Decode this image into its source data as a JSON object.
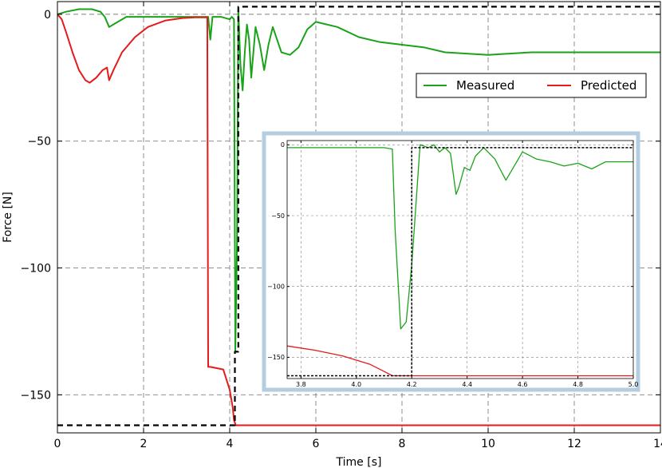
{
  "chart_data": [
    {
      "type": "line",
      "xlabel": "Time [s]",
      "ylabel": "Force [N]",
      "xlim": [
        0,
        14
      ],
      "ylim": [
        -165,
        5
      ],
      "xticks": [
        "0",
        "2",
        "4",
        "6",
        "8",
        "10",
        "12",
        "14"
      ],
      "yticks": [
        "0",
        "−50",
        "−100",
        "−150"
      ],
      "grid": true,
      "legend_position": "top-right",
      "legend": [
        "Measured",
        "Predicted"
      ],
      "colors": {
        "measured": "#1aa31a",
        "predicted": "#e51a1a",
        "reference": "#000000",
        "inset_frame": "#b5cde0"
      },
      "series": [
        {
          "name": "Measured",
          "color": "#1aa31a",
          "style": "solid",
          "x": [
            0,
            0.2,
            0.5,
            0.8,
            1.0,
            1.1,
            1.2,
            1.3,
            1.6,
            2.0,
            2.5,
            3.0,
            3.4,
            3.5,
            3.55,
            3.6,
            3.8,
            4.0,
            4.05,
            4.1,
            4.13,
            4.17,
            4.2,
            4.25,
            4.3,
            4.35,
            4.4,
            4.45,
            4.5,
            4.6,
            4.7,
            4.8,
            4.9,
            5.0,
            5.2,
            5.4,
            5.6,
            5.8,
            6.0,
            6.5,
            7.0,
            7.5,
            8.0,
            8.5,
            9.0,
            10.0,
            11.0,
            12.0,
            13.0,
            14.0
          ],
          "y": [
            0,
            1,
            2,
            2,
            1,
            -1,
            -5,
            -4,
            -1,
            -1,
            -1,
            -1,
            -1,
            -1,
            -10,
            -1,
            -1,
            -2,
            -1,
            -2,
            -133,
            -90,
            2,
            -20,
            -30,
            -15,
            -4,
            -10,
            -25,
            -5,
            -12,
            -22,
            -12,
            -5,
            -15,
            -16,
            -13,
            -6,
            -3,
            -5,
            -9,
            -11,
            -12,
            -13,
            -15,
            -16,
            -15,
            -15,
            -15,
            -15
          ]
        },
        {
          "name": "Predicted",
          "color": "#e51a1a",
          "style": "solid",
          "x": [
            0,
            0.1,
            0.2,
            0.35,
            0.5,
            0.65,
            0.75,
            0.9,
            1.05,
            1.15,
            1.2,
            1.3,
            1.5,
            1.8,
            2.1,
            2.5,
            2.9,
            3.2,
            3.48,
            3.5,
            3.55,
            3.85,
            4.0,
            4.07,
            4.1,
            4.14,
            6.0,
            8.0,
            10.0,
            12.0,
            14.0
          ],
          "y": [
            0,
            -2,
            -7,
            -15,
            -22,
            -26,
            -27,
            -25,
            -22,
            -21,
            -26,
            -22,
            -15,
            -9,
            -5,
            -2.5,
            -1.5,
            -1.2,
            -1.2,
            -139,
            -139,
            -140,
            -148,
            -155,
            -160,
            -162,
            -162,
            -162,
            -162,
            -162,
            -162
          ]
        },
        {
          "style": "dashed",
          "color": "#000000",
          "x": [
            0,
            4.12,
            4.12,
            4.2,
            4.2,
            14
          ],
          "y": [
            -162,
            -162,
            -133,
            -133,
            3,
            3
          ]
        }
      ]
    },
    {
      "type": "line",
      "xlim": [
        3.75,
        5.0
      ],
      "ylim": [
        -165,
        3
      ],
      "xticks": [
        "3.8",
        "4.0",
        "4.2",
        "4.4",
        "4.6",
        "4.8",
        "5.0"
      ],
      "yticks": [
        "0",
        "−50",
        "−100",
        "−150"
      ],
      "grid": true,
      "series": [
        {
          "name": "Measured",
          "color": "#1aa31a",
          "x": [
            3.75,
            3.85,
            3.95,
            4.05,
            4.1,
            4.13,
            4.14,
            4.16,
            4.18,
            4.2,
            4.23,
            4.26,
            4.28,
            4.3,
            4.32,
            4.34,
            4.36,
            4.37,
            4.39,
            4.41,
            4.43,
            4.46,
            4.5,
            4.54,
            4.57,
            4.6,
            4.65,
            4.7,
            4.75,
            4.8,
            4.85,
            4.9,
            5.0
          ],
          "y": [
            -2,
            -2,
            -2,
            -2,
            -2,
            -3,
            -60,
            -130,
            -125,
            -85,
            0,
            -2,
            0,
            -5,
            -2,
            -6,
            -35,
            -30,
            -16,
            -18,
            -8,
            -2,
            -10,
            -25,
            -15,
            -5,
            -10,
            -12,
            -15,
            -13,
            -17,
            -12,
            -12
          ]
        },
        {
          "name": "Predicted",
          "color": "#e51a1a",
          "x": [
            3.75,
            3.85,
            3.95,
            4.05,
            4.1,
            4.13,
            4.2,
            4.5,
            5.0
          ],
          "y": [
            -142,
            -145,
            -149,
            -155,
            -160,
            -163,
            -163,
            -163,
            -163
          ]
        },
        {
          "style": "dashed",
          "color": "#000000",
          "x": [
            3.75,
            4.13,
            4.13,
            4.2,
            4.2,
            5.0
          ],
          "y": [
            -163,
            -163,
            -163,
            -163,
            -2,
            -2
          ]
        }
      ]
    }
  ]
}
